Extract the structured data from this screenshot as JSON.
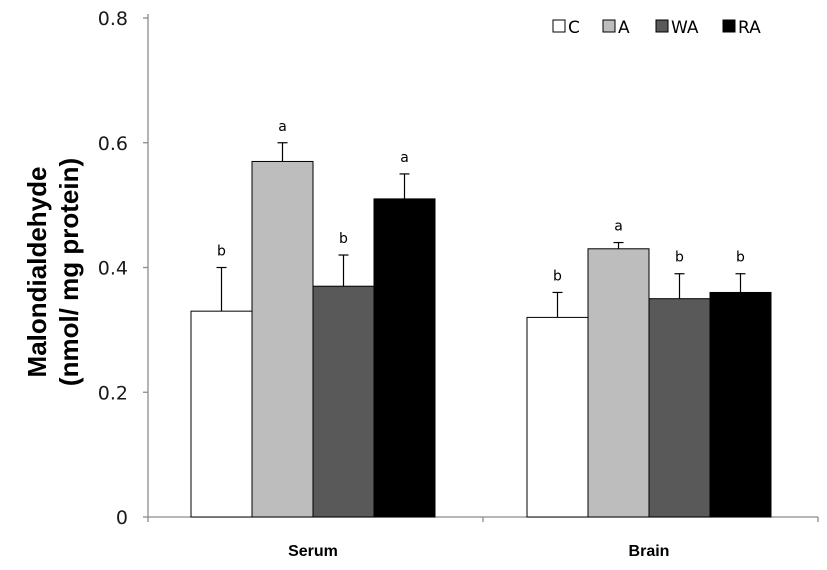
{
  "chart_data": {
    "type": "bar",
    "categories": [
      "Serum",
      "Brain"
    ],
    "series": [
      {
        "name": "C",
        "color": "#ffffff",
        "values": [
          0.33,
          0.32
        ],
        "errors": [
          0.07,
          0.04
        ],
        "labels": [
          "b",
          "b"
        ]
      },
      {
        "name": "A",
        "color": "#bdbdbd",
        "values": [
          0.57,
          0.43
        ],
        "errors": [
          0.03,
          0.01
        ],
        "labels": [
          "a",
          "a"
        ]
      },
      {
        "name": "WA",
        "color": "#595959",
        "values": [
          0.37,
          0.35
        ],
        "errors": [
          0.05,
          0.04
        ],
        "labels": [
          "b",
          "b"
        ]
      },
      {
        "name": "RA",
        "color": "#000000",
        "values": [
          0.51,
          0.36
        ],
        "errors": [
          0.04,
          0.03
        ],
        "labels": [
          "a",
          "b"
        ]
      }
    ],
    "ylim": [
      0,
      0.8
    ],
    "yticks": [
      "0",
      "0.2",
      "0.4",
      "0.6",
      "0.8"
    ],
    "ylabel_line1": "Malondialdehyde",
    "ylabel_line2": "(nmol/ mg protein)",
    "xlabel": "",
    "legend_position": "top-right",
    "grid": false
  }
}
